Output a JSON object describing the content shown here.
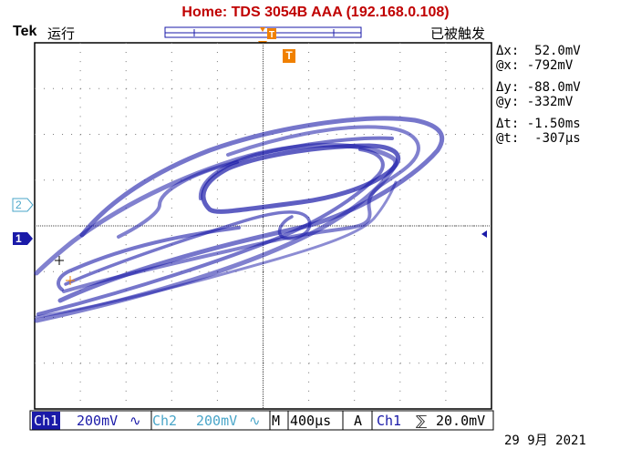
{
  "window": {
    "title": "Home:  TDS 3054B  AAA  (192.168.0.108)"
  },
  "header": {
    "brand": "Tek",
    "run_state": "运行",
    "trigger_state": "已被触发"
  },
  "markers": {
    "trigger_pos": "T",
    "ch2_marker": "2",
    "ch1_marker": "1"
  },
  "cursor_readouts": {
    "dx": "Δx:  52.0mV",
    "at_x": "@x: -792mV",
    "dy": "Δy: -88.0mV",
    "at_y": "@y: -332mV",
    "dt": "Δt: -1.50ms",
    "at_t": "@t:  -307μs"
  },
  "status_bar": {
    "ch1_label": "Ch1",
    "ch1_scale": "200mV",
    "ch1_coupling": "∿",
    "ch2_label": "Ch2",
    "ch2_scale": "200mV",
    "ch2_coupling": "∿",
    "timebase_label": "M",
    "timebase": "400μs",
    "trigger_label": "A",
    "trigger_source": "Ch1",
    "trigger_slope": "⅀",
    "trigger_level": "20.0mV"
  },
  "date": "29 9月  2021",
  "colors": {
    "trace": "#1a1aa8",
    "title": "#c00000",
    "ch2": "#4aa6c9",
    "trigger_marker": "#f08000"
  }
}
